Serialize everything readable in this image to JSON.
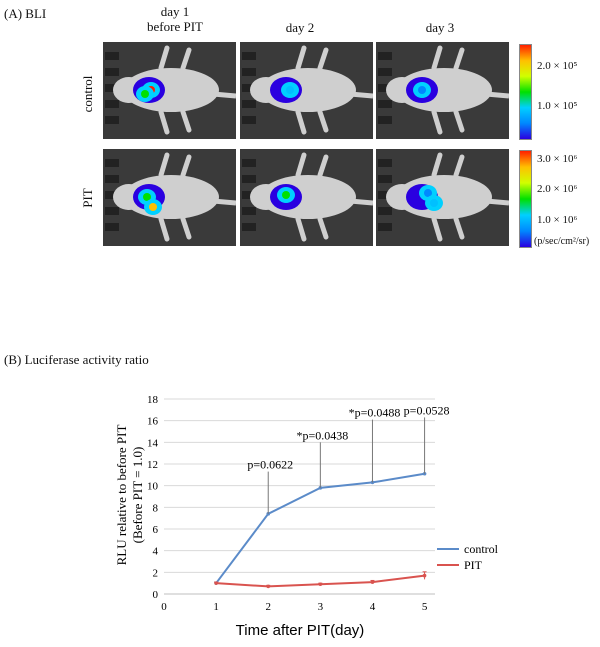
{
  "panel_a": {
    "label": "(A) BLI",
    "columns": [
      {
        "line1": "day 1",
        "line2": "before PIT"
      },
      {
        "line1": "day 2",
        "line2": ""
      },
      {
        "line1": "day 3",
        "line2": ""
      }
    ],
    "rows": [
      "control",
      "PIT"
    ],
    "colorbar_control": {
      "ticks": [
        "2.0 × 10⁵",
        "1.0 × 10⁵"
      ]
    },
    "colorbar_pit": {
      "ticks": [
        "3.0 × 10⁶",
        "2.0 × 10⁶",
        "1.0 × 10⁶"
      ],
      "unit": "(p/sec/cm²/sr)"
    },
    "colors": {
      "image_bg": "#3a3a3a",
      "mouse": "#cfcfcf"
    }
  },
  "panel_b": {
    "label": "(B) Luciferase activity ratio"
  },
  "chart_data": {
    "type": "line",
    "title": "",
    "xlabel": "Time after PIT(day)",
    "ylabel_line1": "RLU relative to before PIT",
    "ylabel_line2": "(Before PIT = 1.0)",
    "xlim": [
      0,
      5.2
    ],
    "ylim": [
      0,
      18
    ],
    "x_ticks": [
      0,
      1,
      2,
      3,
      4,
      5
    ],
    "y_ticks": [
      0,
      2,
      4,
      6,
      8,
      10,
      12,
      14,
      16,
      18
    ],
    "grid": "horizontal",
    "series": [
      {
        "name": "control",
        "color": "#5b8bc9",
        "x": [
          1,
          2,
          3,
          4,
          5
        ],
        "y": [
          1.0,
          7.4,
          9.8,
          10.3,
          11.1
        ],
        "err": [
          0.1,
          0.0,
          0.0,
          0.0,
          0.0
        ]
      },
      {
        "name": "PIT",
        "color": "#d9534f",
        "x": [
          1,
          2,
          3,
          4,
          5
        ],
        "y": [
          1.0,
          0.7,
          0.9,
          1.1,
          1.7
        ],
        "err": [
          0.1,
          0.1,
          0.1,
          0.15,
          0.35
        ]
      }
    ],
    "annotations": [
      {
        "text": "p=0.0622",
        "x": 2,
        "y_top": 11.3
      },
      {
        "text": "*p=0.0438",
        "x": 3,
        "y_top": 14.0
      },
      {
        "text": "*p=0.0488",
        "x": 4,
        "y_top": 16.1
      },
      {
        "text": "p=0.0528",
        "x": 5,
        "y_top": 16.3
      }
    ],
    "legend": {
      "placement": "right",
      "entries": [
        "control",
        "PIT"
      ]
    }
  }
}
